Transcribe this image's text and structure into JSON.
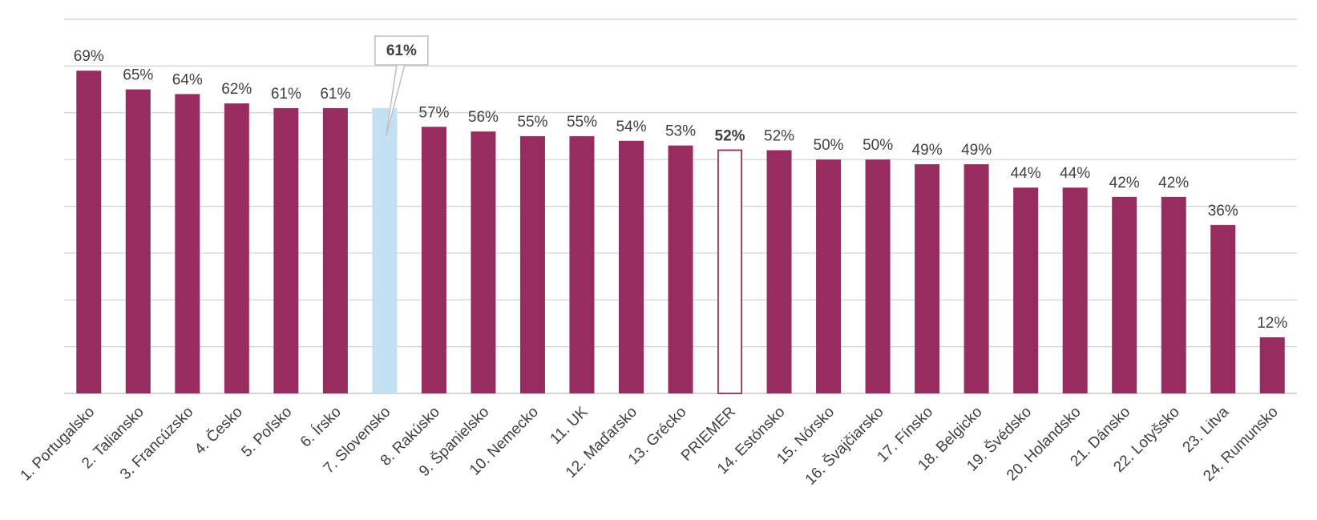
{
  "chart_data": {
    "type": "bar",
    "categories": [
      "1. Portugalsko",
      "2. Taliansko",
      "3. Francúzsko",
      "4. Česko",
      "5. Poľsko",
      "6. Írsko",
      "7. Slovensko",
      "8. Rakúsko",
      "9. Španielsko",
      "10. Nemecko",
      "11. UK",
      "12. Maďarsko",
      "13. Grécko",
      "PRIEMER",
      "14. Estónsko",
      "15. Nórsko",
      "16. Švajčiarsko",
      "17. Fínsko",
      "18. Belgicko",
      "19. Švédsko",
      "20. Holandsko",
      "21. Dánsko",
      "22. Lotyšsko",
      "23. Litva",
      "24. Rumunsko"
    ],
    "values": [
      69,
      65,
      64,
      62,
      61,
      61,
      61,
      57,
      56,
      55,
      55,
      54,
      53,
      52,
      52,
      50,
      50,
      49,
      49,
      44,
      44,
      42,
      42,
      36,
      12
    ],
    "data_labels": [
      "69%",
      "65%",
      "64%",
      "62%",
      "61%",
      "61%",
      "61%",
      "57%",
      "56%",
      "55%",
      "55%",
      "54%",
      "53%",
      "52%",
      "52%",
      "50%",
      "50%",
      "49%",
      "49%",
      "44%",
      "44%",
      "42%",
      "42%",
      "36%",
      "12%"
    ],
    "highlight": {
      "category": "7. Slovensko",
      "callout_label": "61%",
      "color": "#c3e1f3"
    },
    "average": {
      "category": "PRIEMER",
      "style": "outline",
      "bold_label": true
    },
    "colors": {
      "bar": "#972d5e",
      "highlight": "#c3e1f3",
      "average_fill": "#ffffff",
      "average_stroke": "#972d5e"
    },
    "ylim": [
      0,
      80
    ],
    "grid": true,
    "title": "",
    "xlabel": "",
    "ylabel": ""
  }
}
